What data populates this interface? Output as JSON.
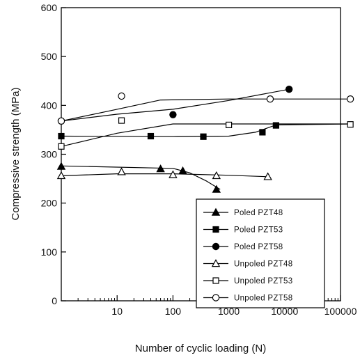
{
  "chart_data": {
    "type": "scatter",
    "title": "",
    "xlabel": "Number of cyclic loading (N)",
    "ylabel": "Compressive strength (MPa)",
    "x_scale": "log",
    "xlim": [
      1,
      100000
    ],
    "ylim": [
      0,
      600
    ],
    "x_ticks": [
      {
        "value": 10,
        "label": "10"
      },
      {
        "value": 100,
        "label": "100"
      },
      {
        "value": 1000,
        "label": "1000"
      },
      {
        "value": 10000,
        "label": "10000"
      },
      {
        "value": 100000,
        "label": "100000"
      }
    ],
    "y_ticks": [
      {
        "value": 0,
        "label": "0"
      },
      {
        "value": 100,
        "label": "100"
      },
      {
        "value": 200,
        "label": "200"
      },
      {
        "value": 300,
        "label": "300"
      },
      {
        "value": 400,
        "label": "400"
      },
      {
        "value": 500,
        "label": "500"
      },
      {
        "value": 600,
        "label": "600"
      }
    ],
    "grid": false,
    "legend_position": "bottom-right",
    "series": [
      {
        "name": "Poled PZT48",
        "marker": "triangle-filled",
        "x": [
          1,
          60,
          150,
          600
        ],
        "y": [
          275,
          270,
          266,
          228
        ],
        "trend_x": [
          1,
          100,
          200,
          400,
          700
        ],
        "trend_y": [
          276,
          271,
          262,
          245,
          228
        ]
      },
      {
        "name": "Poled PZT53",
        "marker": "square-filled",
        "x": [
          1,
          40,
          350,
          4000,
          7000
        ],
        "y": [
          337,
          337,
          336,
          345,
          359
        ],
        "trend_x": [
          1,
          100,
          1000,
          3000,
          7000,
          150000
        ],
        "trend_y": [
          337,
          336,
          337,
          345,
          360,
          362
        ]
      },
      {
        "name": "Poled PZT58",
        "marker": "circle-filled",
        "x": [
          1,
          100,
          12000
        ],
        "y": [
          368,
          381,
          433
        ],
        "trend_x": [
          1,
          10,
          100,
          1000,
          12000
        ],
        "trend_y": [
          368,
          382,
          392,
          410,
          433
        ]
      },
      {
        "name": "Unpoled PZT48",
        "marker": "triangle-open",
        "x": [
          1,
          12,
          100,
          600,
          5000
        ],
        "y": [
          256,
          264,
          258,
          256,
          254
        ],
        "trend_x": [
          1,
          10,
          100,
          1000,
          5000
        ],
        "trend_y": [
          256,
          260,
          260,
          257,
          254
        ]
      },
      {
        "name": "Unpoled PZT53",
        "marker": "square-open",
        "x": [
          1,
          12,
          1000,
          150000
        ],
        "y": [
          316,
          369,
          360,
          361
        ],
        "trend_x": [
          1,
          10,
          100,
          1000,
          150000
        ],
        "trend_y": [
          316,
          343,
          362,
          362,
          362
        ]
      },
      {
        "name": "Unpoled PZT58",
        "marker": "circle-open",
        "x": [
          1,
          12,
          5500,
          150000
        ],
        "y": [
          368,
          419,
          413,
          413
        ],
        "trend_x": [
          1,
          10,
          60,
          1000,
          150000
        ],
        "trend_y": [
          368,
          392,
          411,
          413,
          413
        ]
      }
    ]
  }
}
